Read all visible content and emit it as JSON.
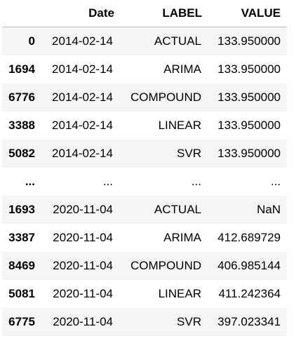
{
  "table": {
    "columns": {
      "index": "",
      "date": "Date",
      "label": "LABEL",
      "value": "VALUE"
    },
    "rows": [
      {
        "index": "0",
        "date": "2014-02-14",
        "label": "ACTUAL",
        "value": "133.950000"
      },
      {
        "index": "1694",
        "date": "2014-02-14",
        "label": "ARIMA",
        "value": "133.950000"
      },
      {
        "index": "6776",
        "date": "2014-02-14",
        "label": "COMPOUND",
        "value": "133.950000"
      },
      {
        "index": "3388",
        "date": "2014-02-14",
        "label": "LINEAR",
        "value": "133.950000"
      },
      {
        "index": "5082",
        "date": "2014-02-14",
        "label": "SVR",
        "value": "133.950000"
      },
      {
        "index": "...",
        "date": "...",
        "label": "...",
        "value": "..."
      },
      {
        "index": "1693",
        "date": "2020-11-04",
        "label": "ACTUAL",
        "value": "NaN"
      },
      {
        "index": "3387",
        "date": "2020-11-04",
        "label": "ARIMA",
        "value": "412.689729"
      },
      {
        "index": "8469",
        "date": "2020-11-04",
        "label": "COMPOUND",
        "value": "406.985144"
      },
      {
        "index": "5081",
        "date": "2020-11-04",
        "label": "LINEAR",
        "value": "411.242364"
      },
      {
        "index": "6775",
        "date": "2020-11-04",
        "label": "SVR",
        "value": "397.023341"
      }
    ]
  }
}
